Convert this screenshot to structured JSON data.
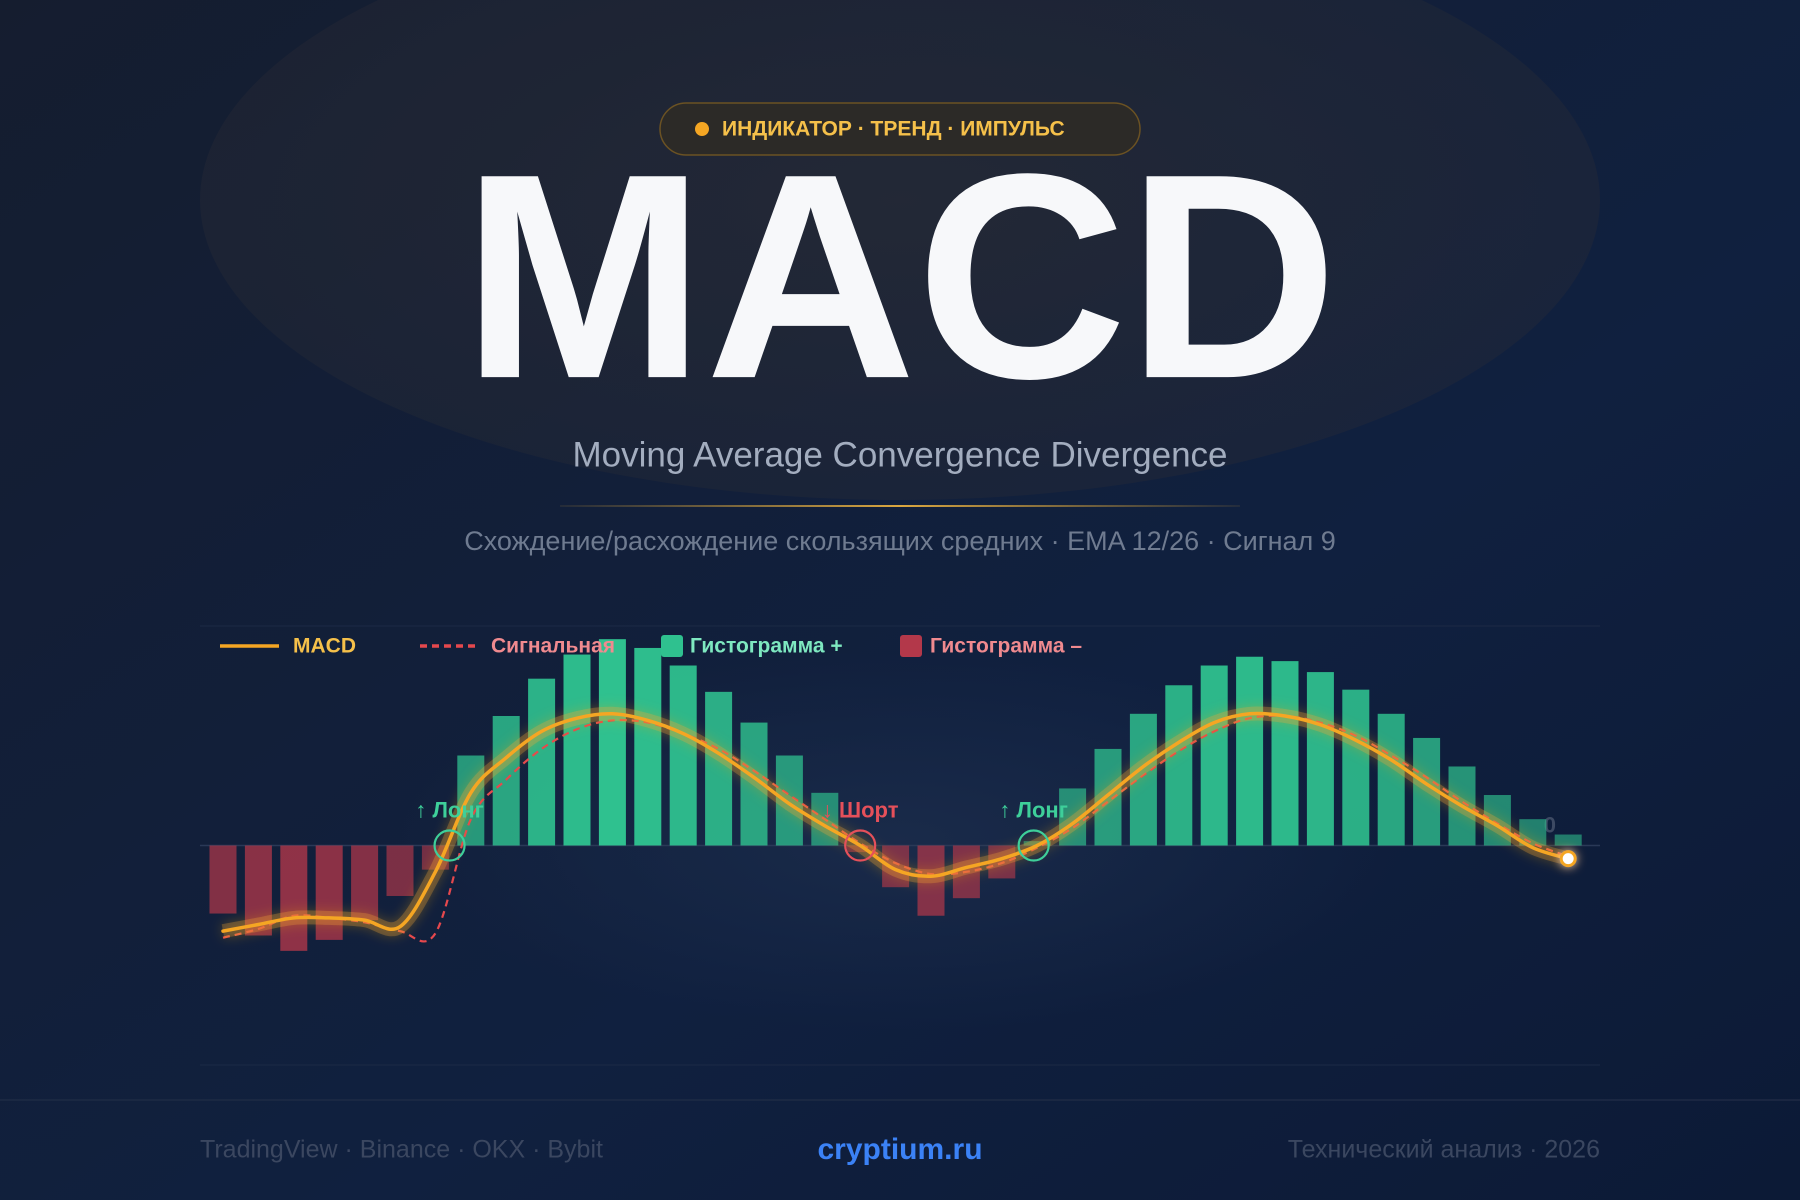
{
  "header": {
    "badge": "ИНДИКАТОР · ТРЕНД · ИМПУЛЬС",
    "title": "MACD",
    "subtitle": "Moving Average Convergence Divergence",
    "description": "Схождение/расхождение скользящих средних · EMA 12/26 · Сигнал 9"
  },
  "chart_data": {
    "type": "combo",
    "categories": [
      null,
      null,
      null,
      null,
      null,
      null,
      null,
      null,
      null,
      null,
      null,
      null,
      null,
      null,
      null,
      null,
      null,
      null,
      null,
      null,
      null,
      null,
      null,
      null,
      null,
      null,
      null,
      null,
      null,
      null,
      null,
      null,
      null,
      null,
      null,
      null,
      null,
      null,
      null
    ],
    "ylim": [
      -10,
      10
    ],
    "yticks": [
      0
    ],
    "series": [
      {
        "name": "MACD",
        "type": "line",
        "color": "#f5a623",
        "values": [
          -3.9,
          -3.6,
          -3.3,
          -3.3,
          -3.4,
          -3.7,
          -1.2,
          2.4,
          4.0,
          5.2,
          5.8,
          6.0,
          5.7,
          5.1,
          4.2,
          3.1,
          1.9,
          0.9,
          0,
          -1.1,
          -1.4,
          -1.0,
          -0.6,
          0,
          1.0,
          2.3,
          3.6,
          4.7,
          5.6,
          6.0,
          5.9,
          5.5,
          4.8,
          3.9,
          2.8,
          1.8,
          0.9,
          -0.1,
          -0.6
        ]
      },
      {
        "name": "Сигнальная",
        "type": "line",
        "dashed": true,
        "color": "#e5484d",
        "values": [
          -4.2,
          -3.8,
          -3.2,
          -3.3,
          -3.5,
          -3.9,
          -4.0,
          1.2,
          3.0,
          4.4,
          5.3,
          5.7,
          5.6,
          5.1,
          4.4,
          3.4,
          2.3,
          1.2,
          0.1,
          -0.8,
          -1.3,
          -1.2,
          -0.8,
          -0.1,
          0.8,
          2.0,
          3.2,
          4.3,
          5.2,
          5.8,
          5.9,
          5.6,
          5.0,
          4.1,
          3.1,
          2.0,
          1.0,
          0.1,
          -0.5
        ]
      },
      {
        "name": "Гистограмма +",
        "type": "bar",
        "color": "#2fc18f",
        "values": [
          null,
          null,
          null,
          null,
          null,
          null,
          null,
          4.1,
          5.9,
          7.6,
          8.7,
          9.4,
          9.0,
          8.2,
          7.0,
          5.6,
          4.1,
          2.4,
          null,
          null,
          null,
          null,
          null,
          0.2,
          2.6,
          4.4,
          6.0,
          7.3,
          8.2,
          8.6,
          8.4,
          7.9,
          7.1,
          6.0,
          4.9,
          3.6,
          2.3,
          1.2,
          0.5
        ]
      },
      {
        "name": "Гистограмма –",
        "type": "bar",
        "color": "#b3384a",
        "values": [
          -3.1,
          -4.1,
          -4.8,
          -4.3,
          -3.4,
          -2.3,
          -1.1,
          null,
          null,
          null,
          null,
          null,
          null,
          null,
          null,
          null,
          null,
          null,
          -0.3,
          -1.9,
          -3.2,
          -2.4,
          -1.5,
          null,
          null,
          null,
          null,
          null,
          null,
          null,
          null,
          null,
          null,
          null,
          null,
          null,
          null,
          null,
          null
        ]
      }
    ],
    "annotations": [
      {
        "text": "↑ Лонг",
        "color": "#3ecf9a"
      },
      {
        "text": "↓ Шорт",
        "color": "#e5505a"
      },
      {
        "text": "↑ Лонг",
        "color": "#3ecf9a"
      }
    ]
  },
  "footer": {
    "left": "TradingView · Binance · OKX · Bybit",
    "center": "cryptium.ru",
    "right": "Технический анализ · 2026"
  }
}
